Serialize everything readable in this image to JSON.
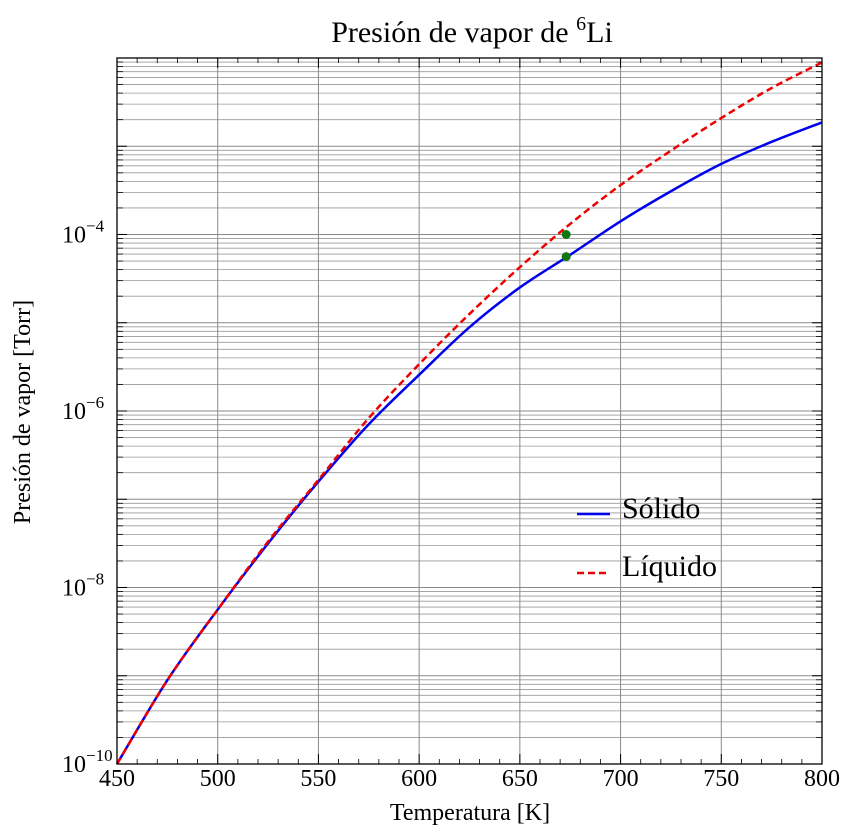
{
  "chart_data": {
    "type": "line",
    "title": "Presión de vapor de ",
    "title_isotope": "6",
    "title_element": "Li",
    "xlabel": "Temperatura [K]",
    "ylabel": "Presión de vapor [Torr]",
    "xlim": [
      450,
      800
    ],
    "ylim_log10": [
      -10,
      -2.0
    ],
    "yscale": "log",
    "grid": true,
    "legend_position": "center-right",
    "x_ticks": [
      "450",
      "500",
      "550",
      "600",
      "650",
      "700",
      "750",
      "800"
    ],
    "y_ticks": [
      {
        "base": "10",
        "exp": "−10",
        "value": -10
      },
      {
        "base": "10",
        "exp": "−8",
        "value": -8
      },
      {
        "base": "10",
        "exp": "−6",
        "value": -6
      },
      {
        "base": "10",
        "exp": "−4",
        "value": -4
      }
    ],
    "x": [
      450,
      475,
      500,
      525,
      550,
      575,
      600,
      625,
      650,
      675,
      700,
      725,
      750,
      775,
      800
    ],
    "series": [
      {
        "name": "Sólido",
        "color": "#0000ee",
        "dash": "solid",
        "log10_values": [
          -10.0,
          -9.05,
          -8.25,
          -7.5,
          -6.8,
          -6.15,
          -5.59,
          -5.05,
          -4.6,
          -4.23,
          -3.85,
          -3.51,
          -3.2,
          -2.95,
          -2.73
        ]
      },
      {
        "name": "Líquido",
        "color": "#ee0000",
        "dash": "dashed",
        "log10_values": [
          -10.0,
          -9.05,
          -8.25,
          -7.48,
          -6.78,
          -6.08,
          -5.47,
          -4.9,
          -4.37,
          -3.88,
          -3.44,
          -3.05,
          -2.68,
          -2.34,
          -2.05
        ]
      }
    ],
    "markers": [
      {
        "x": 673,
        "log10_value": -4.25,
        "color": "#117711"
      },
      {
        "x": 673,
        "log10_value": -4.0,
        "color": "#117711"
      }
    ]
  }
}
